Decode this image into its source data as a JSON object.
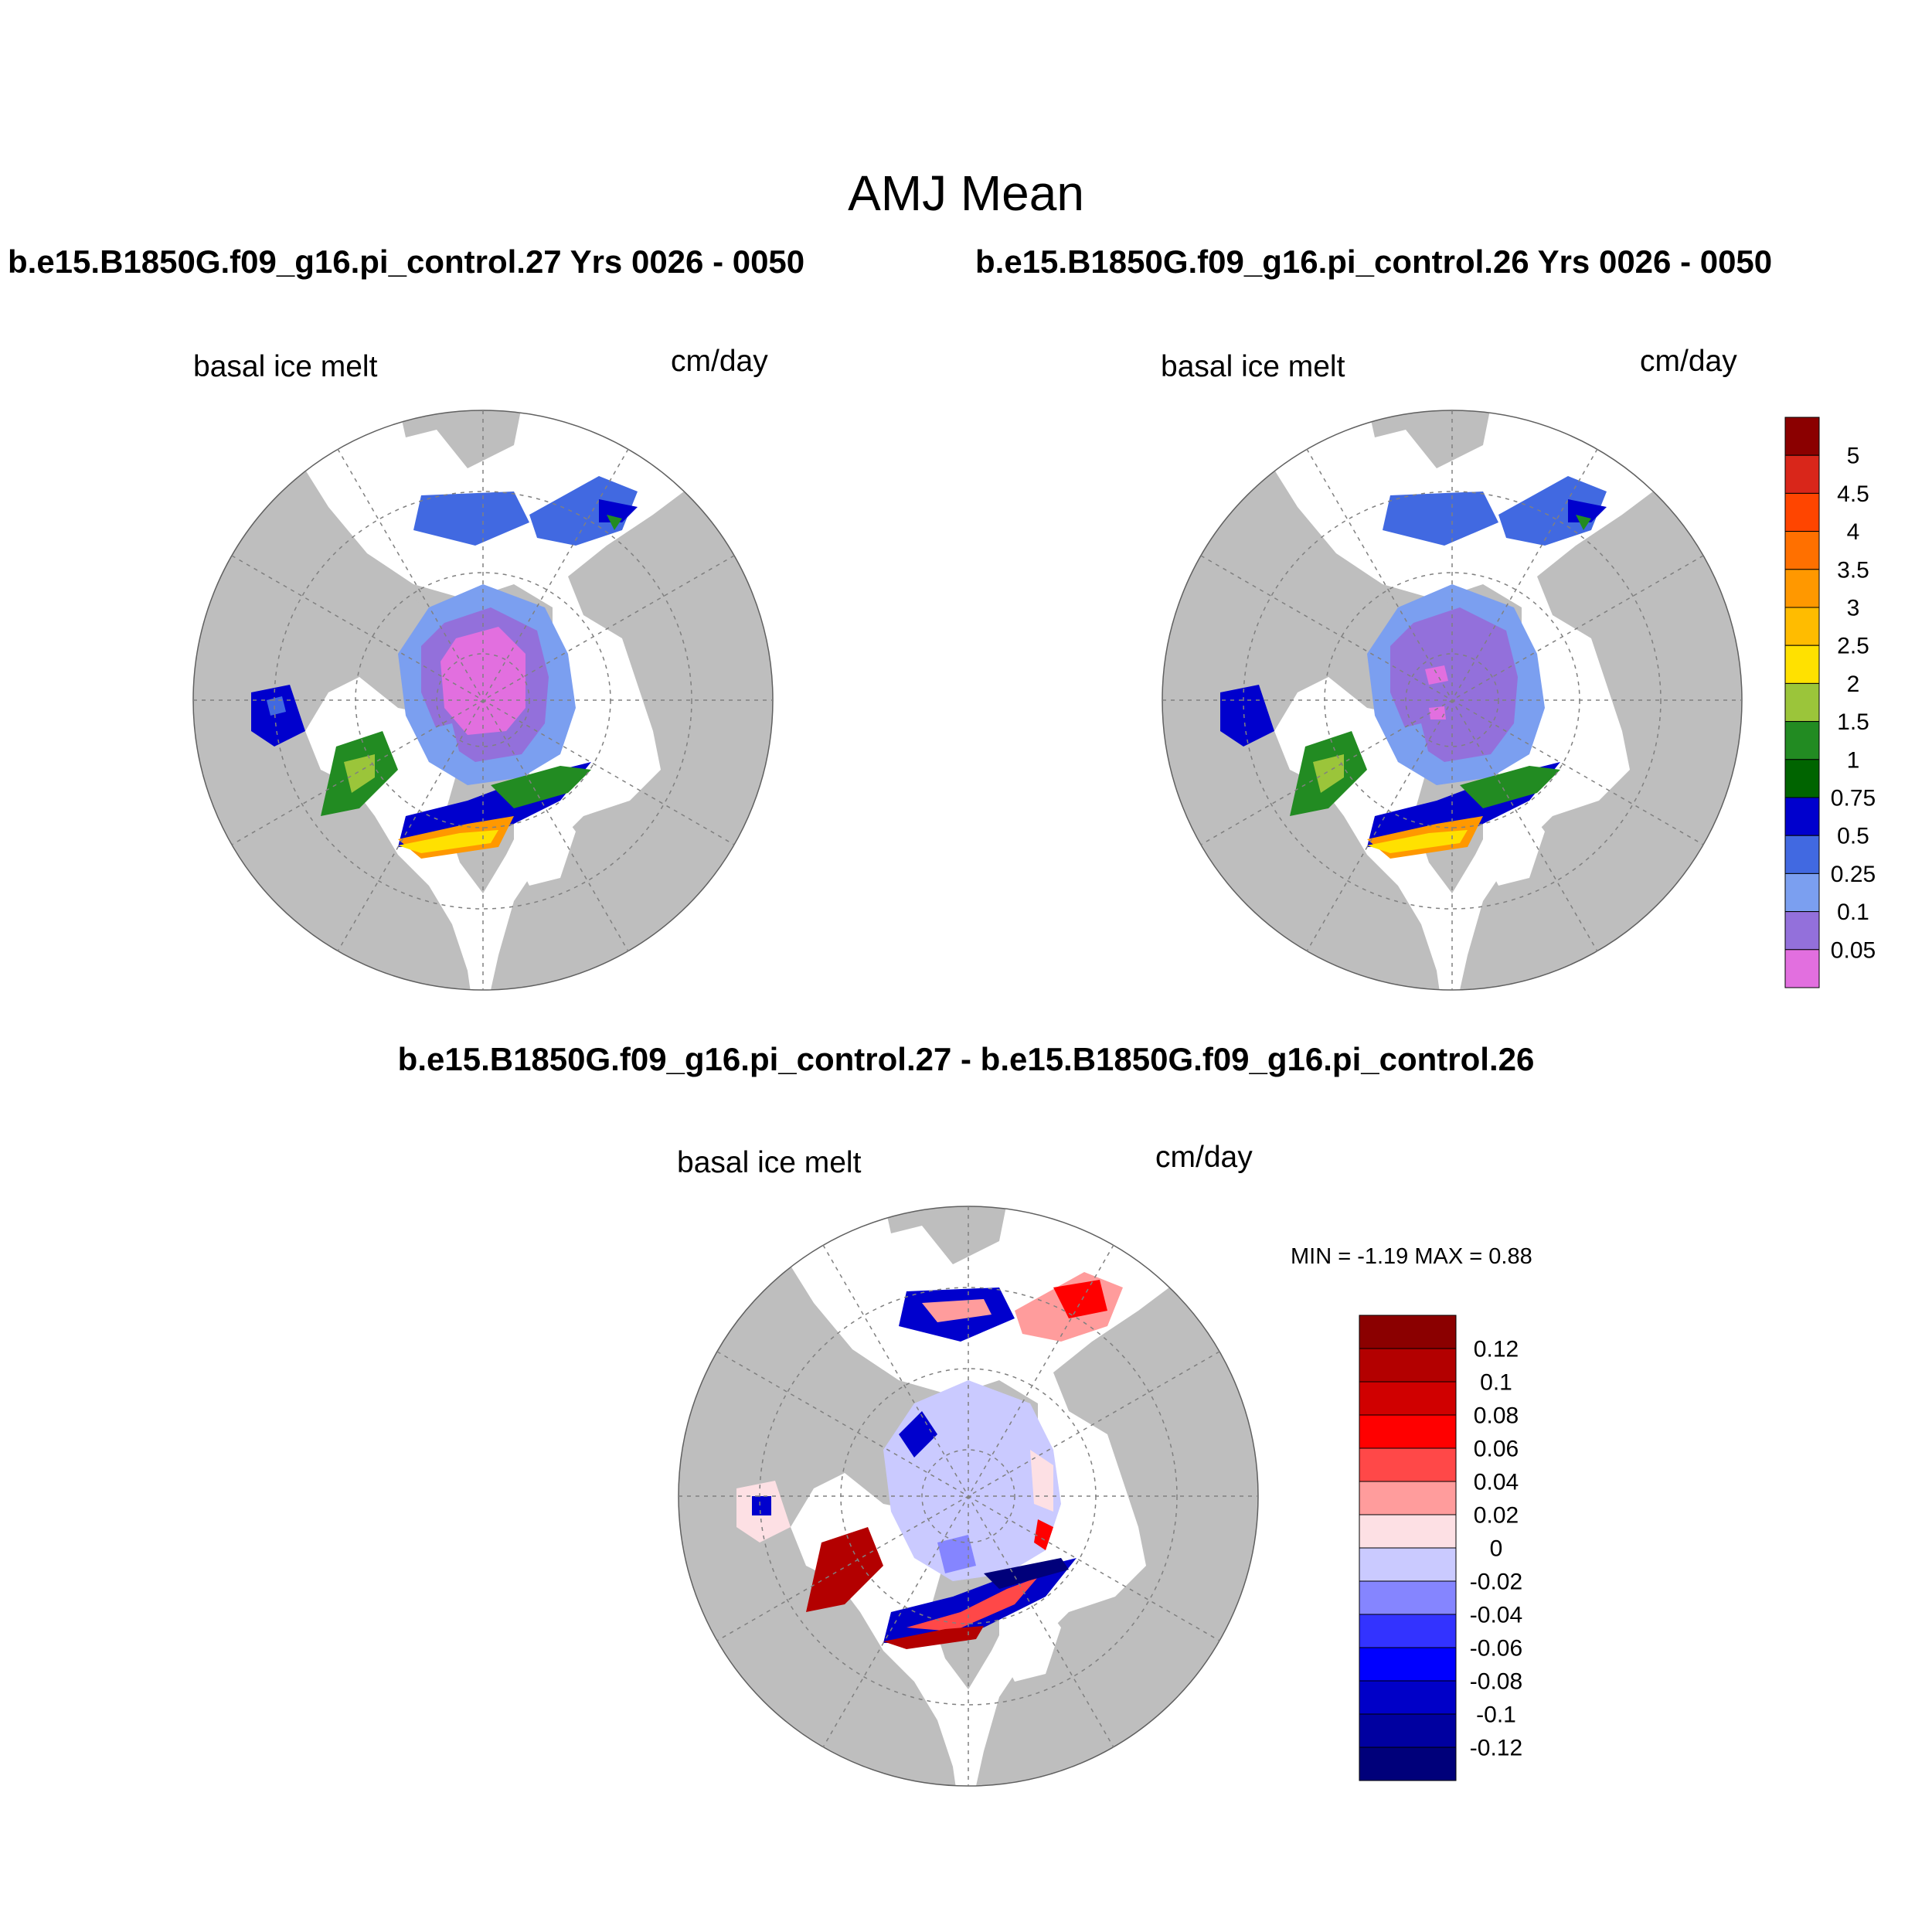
{
  "title": "AMJ Mean",
  "panels": [
    {
      "title": "b.e15.B1850G.f09_g16.pi_control.27  Yrs 0026 - 0050",
      "variable": "basal ice melt",
      "units": "cm/day"
    },
    {
      "title": "b.e15.B1850G.f09_g16.pi_control.26  Yrs 0026 - 0050",
      "variable": "basal ice melt",
      "units": "cm/day"
    },
    {
      "title": "b.e15.B1850G.f09_g16.pi_control.27 - b.e15.B1850G.f09_g16.pi_control.26",
      "variable": "basal ice melt",
      "units": "cm/day",
      "stats": "MIN =  -1.19 MAX =   0.88"
    }
  ],
  "colorbars": {
    "mean": {
      "labels": [
        "5",
        "4.5",
        "4",
        "3.5",
        "3",
        "2.5",
        "2",
        "1.5",
        "1",
        "0.75",
        "0.5",
        "0.25",
        "0.1",
        "0.05"
      ],
      "colors": [
        "#8b0000",
        "#d9261a",
        "#ff4500",
        "#ff7000",
        "#ff9800",
        "#ffbc00",
        "#ffe100",
        "#9bc53a",
        "#228b22",
        "#006400",
        "#0000cd",
        "#4169e1",
        "#7b9ff0",
        "#9370db",
        "#e26fdf"
      ]
    },
    "diff": {
      "labels": [
        "0.12",
        "0.1",
        "0.08",
        "0.06",
        "0.04",
        "0.02",
        "0",
        "-0.02",
        "-0.04",
        "-0.06",
        "-0.08",
        "-0.1",
        "-0.12"
      ],
      "colors": [
        "#8b0000",
        "#b30000",
        "#d00000",
        "#ff0000",
        "#ff4848",
        "#ff9c9c",
        "#fde0e4",
        "#cacaff",
        "#8585ff",
        "#3333ff",
        "#0000ff",
        "#0000c8",
        "#0000a0",
        "#00007a"
      ]
    }
  },
  "map_colors": {
    "land": "#bebebe",
    "ocean": "#ffffff"
  }
}
